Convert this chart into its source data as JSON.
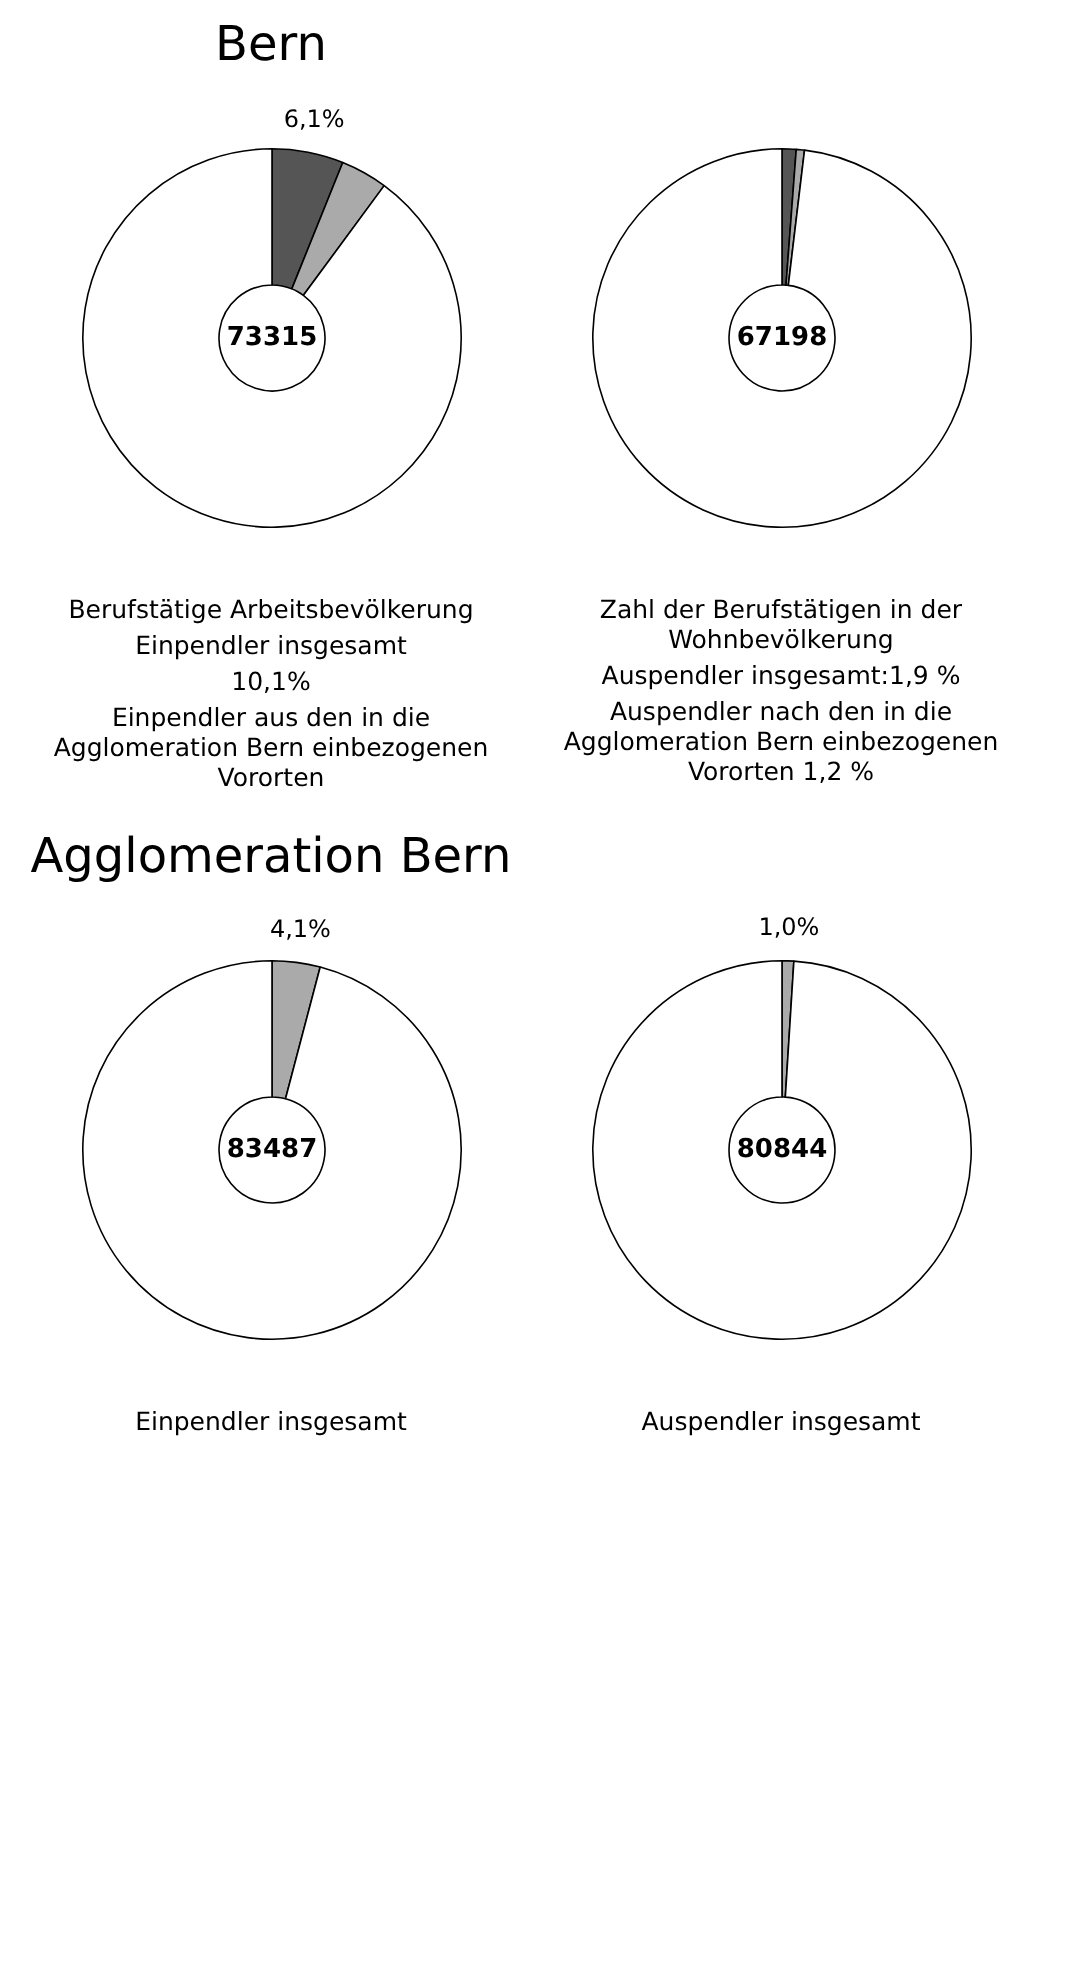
{
  "chart_data": [
    {
      "type": "donut",
      "title": "Bern",
      "categories": [
        null,
        null,
        null
      ],
      "values": [
        6.1,
        4.0,
        89.9
      ],
      "colors": [
        "#555555",
        "#aaaaaa",
        "#ffffff"
      ],
      "value_labels": [
        "6,1%",
        null,
        null
      ],
      "annotations": [
        "73315",
        "Berufstätige Arbeitsbevölkerung",
        "Einpendler insgesamt",
        "10,1%",
        "Einpendler aus den in die Agglomeration Bern einbezogenen Vororten"
      ]
    },
    {
      "type": "donut",
      "categories": [
        null,
        null,
        null
      ],
      "values": [
        1.2,
        0.7,
        98.1
      ],
      "colors": [
        "#555555",
        "#aaaaaa",
        "#ffffff"
      ],
      "annotations": [
        "67198",
        "Zahl der Berufstätigen in der Wohnbevölkerung",
        "Auspendler insgesamt:1,9 %",
        "Auspendler nach den in die Agglomeration Bern einbezogenen Vororten 1,2 %"
      ]
    },
    {
      "type": "donut",
      "title": "Agglomeration Bern",
      "categories": [
        null,
        null
      ],
      "values": [
        4.1,
        95.9
      ],
      "colors": [
        "#aaaaaa",
        "#ffffff"
      ],
      "value_labels": [
        "4,1%",
        null
      ],
      "annotations": [
        "83487",
        "Einpendler insgesamt"
      ]
    },
    {
      "type": "donut",
      "categories": [
        null,
        null
      ],
      "values": [
        1.0,
        99.0
      ],
      "colors": [
        "#aaaaaa",
        "#ffffff"
      ],
      "value_labels": [
        "1,0%",
        null
      ],
      "annotations": [
        "80844",
        "Auspendler insgesamt"
      ]
    }
  ]
}
